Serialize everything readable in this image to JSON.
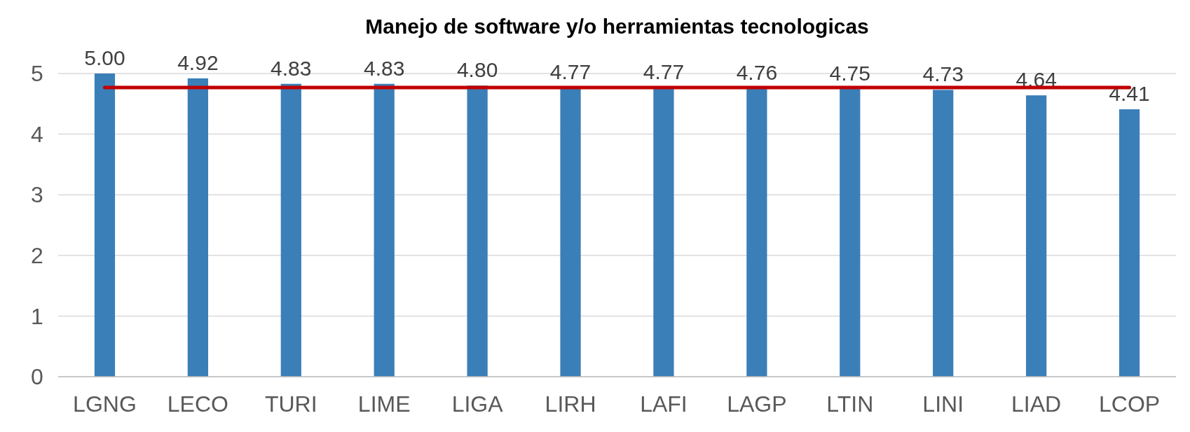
{
  "chart_data": {
    "type": "bar",
    "title": "Manejo de software y/o herramientas tecnologicas",
    "categories": [
      "LGNG",
      "LECO",
      "TURI",
      "LIME",
      "LIGA",
      "LIRH",
      "LAFI",
      "LAGP",
      "LTIN",
      "LINI",
      "LIAD",
      "LCOP"
    ],
    "values": [
      5.0,
      4.92,
      4.83,
      4.83,
      4.8,
      4.77,
      4.77,
      4.76,
      4.75,
      4.73,
      4.64,
      4.41
    ],
    "color": "#3a7fb8",
    "value_labels": [
      "5.00",
      "4.92",
      "4.83",
      "4.83",
      "4.80",
      "4.77",
      "4.77",
      "4.76",
      "4.75",
      "4.73",
      "4.64",
      "4.41"
    ],
    "ylim": [
      0,
      5
    ],
    "yticks": [
      0,
      1,
      2,
      3,
      4,
      5
    ],
    "grid": "y",
    "ref_lines": [
      {
        "axis": "y",
        "value": 4.77,
        "label": null,
        "color": "#c00000"
      }
    ]
  }
}
